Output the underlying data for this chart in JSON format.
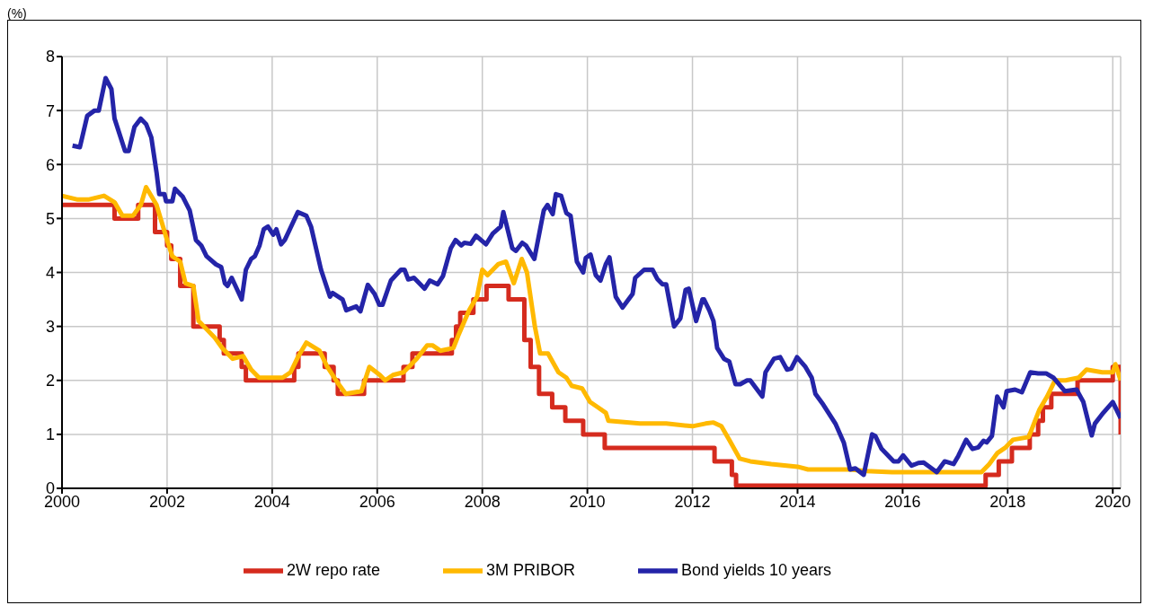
{
  "chart_data": {
    "type": "line",
    "ylabel": "(%)",
    "xlim": [
      2000,
      2020.15
    ],
    "xticks": [
      2000,
      2002,
      2004,
      2006,
      2008,
      2010,
      2012,
      2014,
      2016,
      2018,
      2020
    ],
    "ylim": [
      0,
      8
    ],
    "yticks": [
      0,
      1,
      2,
      3,
      4,
      5,
      6,
      7,
      8
    ],
    "grid": true,
    "legend": "bottom",
    "marker": "none",
    "line_style": "solid",
    "series": [
      {
        "name": "2W repo rate",
        "type": "step",
        "color": "#d52b1e",
        "x": [
          2000.0,
          2001.0,
          2001.45,
          2001.77,
          2002.0,
          2002.08,
          2002.25,
          2002.5,
          2003.0,
          2003.08,
          2003.42,
          2003.5,
          2004.42,
          2004.5,
          2005.0,
          2005.17,
          2005.25,
          2005.75,
          2006.5,
          2006.67,
          2007.42,
          2007.5,
          2007.58,
          2007.83,
          2008.08,
          2008.5,
          2008.8,
          2008.92,
          2009.08,
          2009.33,
          2009.58,
          2009.92,
          2010.33,
          2012.42,
          2012.75,
          2012.83,
          2017.58,
          2017.83,
          2018.08,
          2018.42,
          2018.58,
          2018.67,
          2018.83,
          2019.33,
          2020.0,
          2020.15
        ],
        "values": [
          5.25,
          5.0,
          5.25,
          4.75,
          4.5,
          4.25,
          3.75,
          3.0,
          2.75,
          2.5,
          2.25,
          2.0,
          2.25,
          2.5,
          2.25,
          2.0,
          1.75,
          2.0,
          2.25,
          2.5,
          2.75,
          3.0,
          3.25,
          3.5,
          3.75,
          3.5,
          2.75,
          2.25,
          1.75,
          1.5,
          1.25,
          1.0,
          0.75,
          0.5,
          0.25,
          0.05,
          0.25,
          0.5,
          0.75,
          1.0,
          1.25,
          1.5,
          1.75,
          2.0,
          2.25,
          1.0
        ]
      },
      {
        "name": "3M PRIBOR",
        "color": "#ffb900",
        "x": [
          2000.0,
          2000.3,
          2000.5,
          2000.8,
          2001.0,
          2001.15,
          2001.35,
          2001.5,
          2001.6,
          2001.8,
          2002.0,
          2002.1,
          2002.25,
          2002.35,
          2002.5,
          2002.6,
          2002.75,
          2002.9,
          2003.05,
          2003.25,
          2003.45,
          2003.6,
          2003.75,
          2004.2,
          2004.35,
          2004.5,
          2004.65,
          2004.9,
          2005.05,
          2005.25,
          2005.4,
          2005.7,
          2005.85,
          2006.05,
          2006.15,
          2006.3,
          2006.5,
          2006.75,
          2006.95,
          2007.05,
          2007.2,
          2007.45,
          2007.55,
          2007.75,
          2007.9,
          2008.0,
          2008.1,
          2008.3,
          2008.45,
          2008.6,
          2008.75,
          2008.85,
          2009.0,
          2009.1,
          2009.25,
          2009.45,
          2009.6,
          2009.7,
          2009.9,
          2010.05,
          2010.2,
          2010.35,
          2010.4,
          2011.0,
          2011.5,
          2012.0,
          2012.25,
          2012.4,
          2012.55,
          2012.7,
          2012.9,
          2013.1,
          2013.5,
          2014.0,
          2014.2,
          2015.0,
          2015.3,
          2015.8,
          2016.5,
          2017.5,
          2017.65,
          2017.8,
          2017.95,
          2018.1,
          2018.4,
          2018.6,
          2018.75,
          2018.9,
          2019.1,
          2019.35,
          2019.5,
          2019.8,
          2020.0,
          2020.05,
          2020.15
        ],
        "values": [
          5.42,
          5.35,
          5.35,
          5.42,
          5.3,
          5.05,
          5.05,
          5.25,
          5.58,
          5.25,
          4.6,
          4.3,
          4.2,
          3.8,
          3.75,
          3.1,
          2.95,
          2.8,
          2.6,
          2.4,
          2.45,
          2.2,
          2.05,
          2.05,
          2.15,
          2.45,
          2.7,
          2.55,
          2.25,
          1.95,
          1.75,
          1.8,
          2.25,
          2.1,
          2.0,
          2.1,
          2.15,
          2.4,
          2.65,
          2.65,
          2.55,
          2.6,
          2.85,
          3.3,
          3.55,
          4.05,
          3.95,
          4.15,
          4.2,
          3.8,
          4.25,
          4.0,
          3.0,
          2.5,
          2.5,
          2.15,
          2.05,
          1.9,
          1.85,
          1.6,
          1.5,
          1.4,
          1.25,
          1.2,
          1.2,
          1.15,
          1.2,
          1.22,
          1.15,
          0.9,
          0.55,
          0.5,
          0.45,
          0.4,
          0.35,
          0.35,
          0.32,
          0.3,
          0.3,
          0.3,
          0.45,
          0.65,
          0.75,
          0.9,
          0.95,
          1.45,
          1.7,
          2.0,
          2.0,
          2.05,
          2.2,
          2.15,
          2.15,
          2.3,
          2.0
        ]
      },
      {
        "name": "Bond yields 10 years",
        "color": "#2424a8",
        "x": [
          2000.2,
          2000.34,
          2000.48,
          2000.62,
          2000.7,
          2000.83,
          2000.94,
          2001.0,
          2001.2,
          2001.27,
          2001.38,
          2001.5,
          2001.6,
          2001.7,
          2001.8,
          2001.85,
          2001.95,
          2001.98,
          2002.1,
          2002.15,
          2002.3,
          2002.43,
          2002.55,
          2002.65,
          2002.75,
          2002.93,
          2003.03,
          2003.1,
          2003.15,
          2003.23,
          2003.42,
          2003.5,
          2003.6,
          2003.67,
          2003.76,
          2003.84,
          2003.92,
          2004.02,
          2004.08,
          2004.17,
          2004.24,
          2004.49,
          2004.65,
          2004.74,
          2004.93,
          2005.1,
          2005.15,
          2005.34,
          2005.41,
          2005.6,
          2005.68,
          2005.82,
          2005.95,
          2006.04,
          2006.1,
          2006.26,
          2006.45,
          2006.52,
          2006.59,
          2006.7,
          2006.9,
          2007.0,
          2007.15,
          2007.25,
          2007.4,
          2007.49,
          2007.6,
          2007.66,
          2007.78,
          2007.88,
          2008.07,
          2008.2,
          2008.35,
          2008.4,
          2008.57,
          2008.64,
          2008.76,
          2008.83,
          2008.99,
          2009.17,
          2009.24,
          2009.34,
          2009.4,
          2009.5,
          2009.6,
          2009.68,
          2009.8,
          2009.92,
          2009.97,
          2010.06,
          2010.16,
          2010.25,
          2010.35,
          2010.42,
          2010.54,
          2010.67,
          2010.86,
          2010.91,
          2011.08,
          2011.24,
          2011.33,
          2011.43,
          2011.5,
          2011.65,
          2011.77,
          2011.87,
          2011.93,
          2012.07,
          2012.19,
          2012.22,
          2012.32,
          2012.4,
          2012.47,
          2012.6,
          2012.7,
          2012.82,
          2012.91,
          2013.04,
          2013.1,
          2013.33,
          2013.39,
          2013.55,
          2013.67,
          2013.8,
          2013.88,
          2013.99,
          2014.15,
          2014.27,
          2014.34,
          2014.49,
          2014.72,
          2014.88,
          2015.0,
          2015.1,
          2015.26,
          2015.42,
          2015.48,
          2015.6,
          2015.83,
          2015.92,
          2016.01,
          2016.17,
          2016.3,
          2016.4,
          2016.65,
          2016.8,
          2016.97,
          2017.06,
          2017.21,
          2017.33,
          2017.44,
          2017.54,
          2017.6,
          2017.7,
          2017.8,
          2017.92,
          2017.98,
          2018.14,
          2018.27,
          2018.43,
          2018.58,
          2018.73,
          2018.87,
          2019.09,
          2019.31,
          2019.44,
          2019.6,
          2019.66,
          2019.82,
          2020.0,
          2020.15
        ],
        "values": [
          6.35,
          6.32,
          6.9,
          7.0,
          7.0,
          7.6,
          7.4,
          6.85,
          6.25,
          6.25,
          6.7,
          6.85,
          6.75,
          6.5,
          5.85,
          5.45,
          5.45,
          5.32,
          5.32,
          5.55,
          5.4,
          5.15,
          4.6,
          4.5,
          4.3,
          4.15,
          4.1,
          3.8,
          3.75,
          3.9,
          3.5,
          4.05,
          4.25,
          4.3,
          4.5,
          4.8,
          4.85,
          4.7,
          4.8,
          4.52,
          4.6,
          5.12,
          5.05,
          4.85,
          4.05,
          3.55,
          3.62,
          3.5,
          3.3,
          3.37,
          3.28,
          3.77,
          3.6,
          3.4,
          3.4,
          3.85,
          4.05,
          4.05,
          3.87,
          3.9,
          3.7,
          3.85,
          3.78,
          3.93,
          4.45,
          4.6,
          4.5,
          4.55,
          4.53,
          4.68,
          4.52,
          4.72,
          4.85,
          5.12,
          4.45,
          4.4,
          4.55,
          4.5,
          4.25,
          5.15,
          5.25,
          5.08,
          5.45,
          5.42,
          5.1,
          5.05,
          4.2,
          4.0,
          4.27,
          4.33,
          3.95,
          3.85,
          4.15,
          4.28,
          3.55,
          3.35,
          3.6,
          3.9,
          4.05,
          4.05,
          3.88,
          3.78,
          3.78,
          3.0,
          3.15,
          3.68,
          3.7,
          3.1,
          3.5,
          3.5,
          3.3,
          3.1,
          2.6,
          2.4,
          2.35,
          1.93,
          1.93,
          2.0,
          2.0,
          1.7,
          2.15,
          2.4,
          2.43,
          2.2,
          2.22,
          2.43,
          2.25,
          2.05,
          1.75,
          1.55,
          1.2,
          0.85,
          0.35,
          0.37,
          0.25,
          1.0,
          0.97,
          0.73,
          0.5,
          0.5,
          0.61,
          0.42,
          0.47,
          0.48,
          0.3,
          0.5,
          0.45,
          0.6,
          0.9,
          0.73,
          0.76,
          0.88,
          0.85,
          0.97,
          1.7,
          1.5,
          1.8,
          1.83,
          1.78,
          2.15,
          2.13,
          2.13,
          2.05,
          1.8,
          1.83,
          1.6,
          0.98,
          1.2,
          1.4,
          1.6,
          1.3
        ]
      }
    ]
  }
}
